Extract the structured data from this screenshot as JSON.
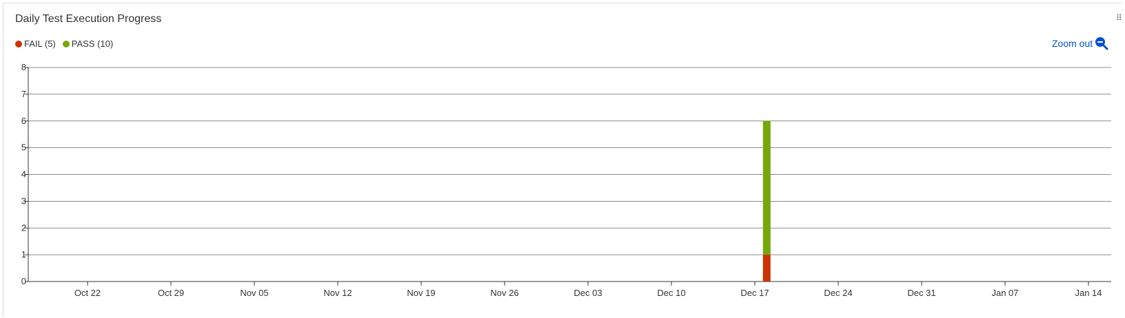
{
  "widget": {
    "title": "Daily Test Execution Progress",
    "zoom_out_label": "Zoom out",
    "icons": {
      "drag": "drag-handle-icon",
      "zoom": "zoom-out-magnifier-icon"
    }
  },
  "chart_data": {
    "type": "bar",
    "stacked": true,
    "legend": [
      {
        "label": "FAIL (5)",
        "color": "#cc3300"
      },
      {
        "label": "PASS (10)",
        "color": "#74a80a"
      }
    ],
    "series": [
      {
        "name": "FAIL",
        "color": "#cc3300",
        "points": [
          {
            "x": "Dec 18",
            "y": 1
          }
        ]
      },
      {
        "name": "PASS",
        "color": "#74a80a",
        "points": [
          {
            "x": "Dec 18",
            "y": 5
          }
        ]
      }
    ],
    "x_ticks": [
      "Oct 22",
      "Oct 29",
      "Nov 05",
      "Nov 12",
      "Nov 19",
      "Nov 26",
      "Dec 03",
      "Dec 10",
      "Dec 17",
      "Dec 24",
      "Dec 31",
      "Jan 07",
      "Jan 14"
    ],
    "y_ticks": [
      0,
      1,
      2,
      3,
      4,
      5,
      6,
      7,
      8
    ],
    "ylim": [
      0,
      8
    ],
    "grid": true,
    "legend_position": "top-left"
  }
}
